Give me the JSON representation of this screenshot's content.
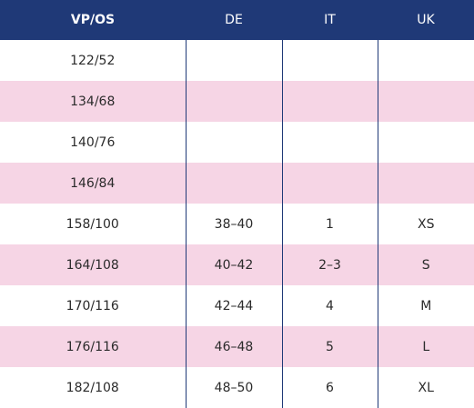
{
  "table": {
    "headers": [
      "VP/OS",
      "DE",
      "IT",
      "UK"
    ],
    "rows": [
      [
        "122/52",
        "",
        "",
        ""
      ],
      [
        "134/68",
        "",
        "",
        ""
      ],
      [
        "140/76",
        "",
        "",
        ""
      ],
      [
        "146/84",
        "",
        "",
        ""
      ],
      [
        "158/100",
        "38–40",
        "1",
        "XS"
      ],
      [
        "164/108",
        "40–42",
        "2–3",
        "S"
      ],
      [
        "170/116",
        "42–44",
        "4",
        "M"
      ],
      [
        "176/116",
        "46–48",
        "5",
        "L"
      ],
      [
        "182/108",
        "48–50",
        "6",
        "XL"
      ]
    ]
  },
  "colors": {
    "header_bg": "#1f3977",
    "header_text": "#ffffff",
    "row_alt_bg": "#f6d5e5",
    "row_bg": "#ffffff",
    "divider": "#1f3977"
  }
}
